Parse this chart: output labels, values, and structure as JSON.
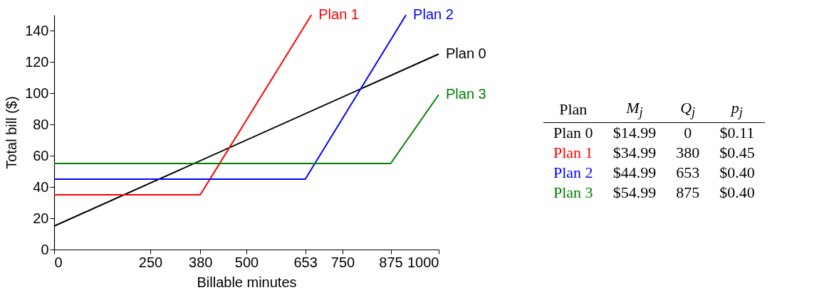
{
  "chart_data": [
    {
      "type": "line",
      "xlabel": "Billable minutes",
      "ylabel": "Total bill ($)",
      "xlim": [
        0,
        1000
      ],
      "ylim": [
        0,
        150
      ],
      "xticks": [
        0,
        250,
        380,
        500,
        653,
        750,
        875,
        1000
      ],
      "yticks": [
        0,
        20,
        40,
        60,
        80,
        100,
        120,
        140
      ],
      "grid": false,
      "legend": false,
      "marker": "none",
      "line_style": "solid",
      "series": [
        {
          "name": "Plan 0",
          "color": "#000000",
          "x": [
            0,
            1000
          ],
          "values": [
            15,
            125
          ]
        },
        {
          "name": "Plan 1",
          "color": "#ff0000",
          "x": [
            0,
            380,
            669
          ],
          "values": [
            35,
            35,
            150
          ]
        },
        {
          "name": "Plan 2",
          "color": "#0000ff",
          "x": [
            0,
            653,
            915
          ],
          "values": [
            45,
            45,
            150
          ]
        },
        {
          "name": "Plan 3",
          "color": "#008000",
          "x": [
            0,
            875,
            1000
          ],
          "values": [
            55,
            55,
            99
          ]
        }
      ]
    },
    {
      "type": "other",
      "legend_title": "Plan",
      "categories": [
        "Plan 0",
        "Plan 1",
        "Plan 2",
        "Plan 3"
      ],
      "colors": [
        "#000000",
        "#ff0000",
        "#0000ff",
        "#008000"
      ],
      "series": [
        {
          "name": "M$_{j}$",
          "values": [
            14.99,
            34.99,
            44.99,
            54.99
          ],
          "value_labels": [
            "$14.99",
            "$34.99",
            "$44.99",
            "$54.99"
          ]
        },
        {
          "name": "Q$_{j}$",
          "values": [
            0,
            380,
            653,
            875
          ],
          "data_labels": true
        },
        {
          "name": "p$_{j}$",
          "values": [
            0.11,
            0.45,
            0.4,
            0.4
          ],
          "value_labels": [
            "$0.11",
            "$0.45",
            "$0.40",
            "$0.40"
          ]
        }
      ]
    }
  ]
}
